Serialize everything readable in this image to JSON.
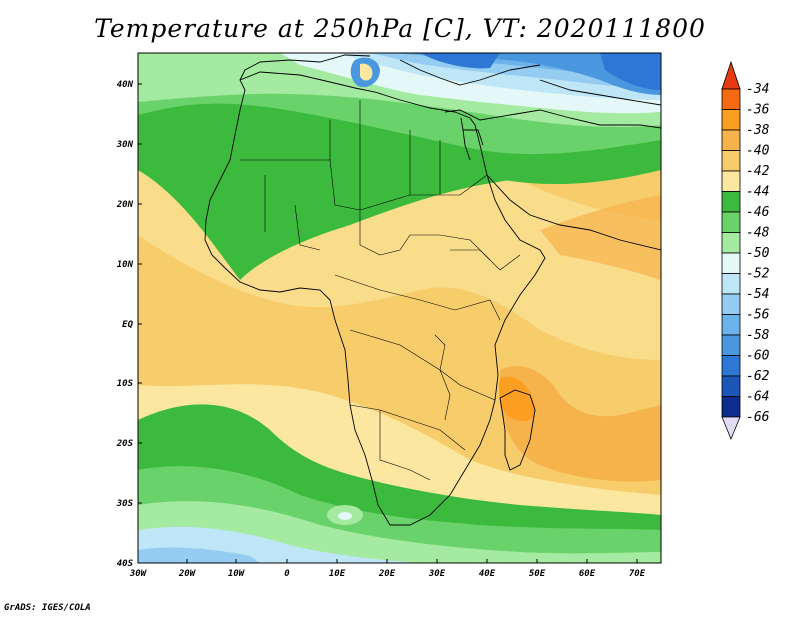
{
  "title": "Temperature at 250hPa [C], VT: 2020111800",
  "credit": "GrADS: IGES/COLA",
  "axes": {
    "lon_labels": [
      "30W",
      "20W",
      "10W",
      "0",
      "10E",
      "20E",
      "30E",
      "40E",
      "50E",
      "60E",
      "70E"
    ],
    "lat_labels": [
      "40N",
      "30N",
      "20N",
      "10N",
      "EQ",
      "10S",
      "20S",
      "30S",
      "40S"
    ]
  },
  "colorbar": {
    "levels": [
      "-34",
      "-36",
      "-38",
      "-40",
      "-42",
      "-44",
      "-46",
      "-48",
      "-50",
      "-52",
      "-54",
      "-56",
      "-58",
      "-60",
      "-62",
      "-64",
      "-66"
    ],
    "colors": {
      "top_arrow": "#e83a10",
      "c_34_36": "#f56a10",
      "c_36_38": "#fb9e22",
      "c_38_40": "#f6b24b",
      "c_40_42": "#f7cd6c",
      "c_42_44": "#fbe7a0",
      "c_44_46": "#3cba3e",
      "c_46_48": "#6ad26a",
      "c_48_50": "#a4eaa0",
      "c_50_52": "#e3f8f7",
      "c_52_54": "#bfe6f6",
      "c_54_56": "#94cdf1",
      "c_56_58": "#6bb3ea",
      "c_58_60": "#4a97e0",
      "c_60_62": "#2f77d4",
      "c_62_64": "#1b56b8",
      "c_64_66": "#0d2c8e",
      "bottom_arrow": "#e2dcf7"
    }
  }
}
